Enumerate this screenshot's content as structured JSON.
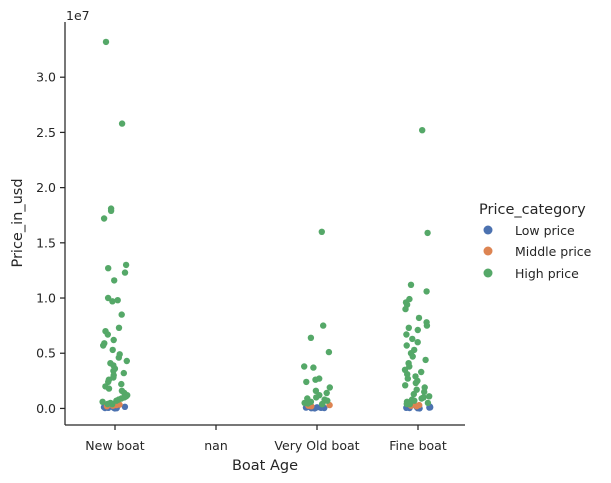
{
  "chart_data": {
    "type": "scatter",
    "subtype": "strip",
    "xlabel": "Boat Age",
    "ylabel": "Price_in_usd",
    "y_offset_label": "1e7",
    "categories": [
      "New boat",
      "nan",
      "Very Old boat",
      "Fine boat"
    ],
    "ylim": [
      -1500000,
      35000000
    ],
    "yticks": [
      0,
      5000000,
      10000000,
      15000000,
      20000000,
      25000000,
      30000000
    ],
    "ytick_labels": [
      "0.0",
      "0.5",
      "1.0",
      "1.5",
      "2.0",
      "2.5",
      "3.0"
    ],
    "grid": false,
    "legend": {
      "title": "Price_category",
      "placement": "right",
      "entries": [
        {
          "name": "Low price",
          "color": "#4c72b0"
        },
        {
          "name": "Middle price",
          "color": "#dd8452"
        },
        {
          "name": "High price",
          "color": "#55a868"
        }
      ]
    },
    "series": [
      {
        "name": "Low price",
        "color": "#4c72b0",
        "points": [
          [
            "New boat",
            0
          ],
          [
            "New boat",
            20000
          ],
          [
            "New boat",
            40000
          ],
          [
            "New boat",
            60000
          ],
          [
            "New boat",
            80000
          ],
          [
            "New boat",
            100000
          ],
          [
            "New boat",
            120000
          ],
          [
            "New boat",
            150000
          ],
          [
            "New boat",
            180000
          ],
          [
            "Very Old boat",
            0
          ],
          [
            "Very Old boat",
            20000
          ],
          [
            "Very Old boat",
            40000
          ],
          [
            "Very Old boat",
            60000
          ],
          [
            "Very Old boat",
            80000
          ],
          [
            "Very Old boat",
            100000
          ],
          [
            "Very Old boat",
            120000
          ],
          [
            "Very Old boat",
            150000
          ],
          [
            "Very Old boat",
            180000
          ],
          [
            "Fine boat",
            0
          ],
          [
            "Fine boat",
            20000
          ],
          [
            "Fine boat",
            40000
          ],
          [
            "Fine boat",
            60000
          ],
          [
            "Fine boat",
            80000
          ],
          [
            "Fine boat",
            100000
          ],
          [
            "Fine boat",
            120000
          ],
          [
            "Fine boat",
            150000
          ],
          [
            "Fine boat",
            180000
          ]
        ]
      },
      {
        "name": "Middle price",
        "color": "#dd8452",
        "points": [
          [
            "New boat",
            200000
          ],
          [
            "New boat",
            250000
          ],
          [
            "New boat",
            300000
          ],
          [
            "New boat",
            350000
          ],
          [
            "Very Old boat",
            200000
          ],
          [
            "Very Old boat",
            250000
          ],
          [
            "Very Old boat",
            300000
          ],
          [
            "Fine boat",
            200000
          ],
          [
            "Fine boat",
            250000
          ],
          [
            "Fine boat",
            300000
          ],
          [
            "Fine boat",
            350000
          ]
        ]
      },
      {
        "name": "High price",
        "color": "#55a868",
        "points": [
          [
            "New boat",
            33200000
          ],
          [
            "New boat",
            25800000
          ],
          [
            "New boat",
            18100000
          ],
          [
            "New boat",
            17900000
          ],
          [
            "New boat",
            17200000
          ],
          [
            "New boat",
            13000000
          ],
          [
            "New boat",
            12700000
          ],
          [
            "New boat",
            12300000
          ],
          [
            "New boat",
            11600000
          ],
          [
            "New boat",
            10000000
          ],
          [
            "New boat",
            9800000
          ],
          [
            "New boat",
            9700000
          ],
          [
            "New boat",
            8500000
          ],
          [
            "New boat",
            7300000
          ],
          [
            "New boat",
            7000000
          ],
          [
            "New boat",
            6700000
          ],
          [
            "New boat",
            6200000
          ],
          [
            "New boat",
            5900000
          ],
          [
            "New boat",
            5700000
          ],
          [
            "New boat",
            5300000
          ],
          [
            "New boat",
            4900000
          ],
          [
            "New boat",
            4600000
          ],
          [
            "New boat",
            4300000
          ],
          [
            "New boat",
            4100000
          ],
          [
            "New boat",
            3900000
          ],
          [
            "New boat",
            3600000
          ],
          [
            "New boat",
            3400000
          ],
          [
            "New boat",
            3200000
          ],
          [
            "New boat",
            3000000
          ],
          [
            "New boat",
            2800000
          ],
          [
            "New boat",
            2600000
          ],
          [
            "New boat",
            2400000
          ],
          [
            "New boat",
            2200000
          ],
          [
            "New boat",
            2000000
          ],
          [
            "New boat",
            1800000
          ],
          [
            "New boat",
            1600000
          ],
          [
            "New boat",
            1400000
          ],
          [
            "New boat",
            1200000
          ],
          [
            "New boat",
            1100000
          ],
          [
            "New boat",
            1000000
          ],
          [
            "New boat",
            900000
          ],
          [
            "New boat",
            800000
          ],
          [
            "New boat",
            700000
          ],
          [
            "New boat",
            600000
          ],
          [
            "New boat",
            500000
          ],
          [
            "New boat",
            450000
          ],
          [
            "New boat",
            400000
          ],
          [
            "New boat",
            380000
          ],
          [
            "Very Old boat",
            16000000
          ],
          [
            "Very Old boat",
            7500000
          ],
          [
            "Very Old boat",
            6400000
          ],
          [
            "Very Old boat",
            5100000
          ],
          [
            "Very Old boat",
            3800000
          ],
          [
            "Very Old boat",
            3700000
          ],
          [
            "Very Old boat",
            2700000
          ],
          [
            "Very Old boat",
            2600000
          ],
          [
            "Very Old boat",
            2400000
          ],
          [
            "Very Old boat",
            1900000
          ],
          [
            "Very Old boat",
            1600000
          ],
          [
            "Very Old boat",
            1400000
          ],
          [
            "Very Old boat",
            1200000
          ],
          [
            "Very Old boat",
            1000000
          ],
          [
            "Very Old boat",
            900000
          ],
          [
            "Very Old boat",
            800000
          ],
          [
            "Very Old boat",
            700000
          ],
          [
            "Very Old boat",
            600000
          ],
          [
            "Very Old boat",
            500000
          ],
          [
            "Very Old boat",
            450000
          ],
          [
            "Very Old boat",
            400000
          ],
          [
            "Very Old boat",
            380000
          ],
          [
            "Fine boat",
            25200000
          ],
          [
            "Fine boat",
            15900000
          ],
          [
            "Fine boat",
            11200000
          ],
          [
            "Fine boat",
            10600000
          ],
          [
            "Fine boat",
            9900000
          ],
          [
            "Fine boat",
            9600000
          ],
          [
            "Fine boat",
            9400000
          ],
          [
            "Fine boat",
            9000000
          ],
          [
            "Fine boat",
            8200000
          ],
          [
            "Fine boat",
            7800000
          ],
          [
            "Fine boat",
            7500000
          ],
          [
            "Fine boat",
            7300000
          ],
          [
            "Fine boat",
            7100000
          ],
          [
            "Fine boat",
            6700000
          ],
          [
            "Fine boat",
            6300000
          ],
          [
            "Fine boat",
            6000000
          ],
          [
            "Fine boat",
            5700000
          ],
          [
            "Fine boat",
            5300000
          ],
          [
            "Fine boat",
            5000000
          ],
          [
            "Fine boat",
            4700000
          ],
          [
            "Fine boat",
            4400000
          ],
          [
            "Fine boat",
            4100000
          ],
          [
            "Fine boat",
            3800000
          ],
          [
            "Fine boat",
            3500000
          ],
          [
            "Fine boat",
            3300000
          ],
          [
            "Fine boat",
            3100000
          ],
          [
            "Fine boat",
            2900000
          ],
          [
            "Fine boat",
            2700000
          ],
          [
            "Fine boat",
            2500000
          ],
          [
            "Fine boat",
            2300000
          ],
          [
            "Fine boat",
            2100000
          ],
          [
            "Fine boat",
            1900000
          ],
          [
            "Fine boat",
            1700000
          ],
          [
            "Fine boat",
            1500000
          ],
          [
            "Fine boat",
            1300000
          ],
          [
            "Fine boat",
            1100000
          ],
          [
            "Fine boat",
            1000000
          ],
          [
            "Fine boat",
            900000
          ],
          [
            "Fine boat",
            800000
          ],
          [
            "Fine boat",
            700000
          ],
          [
            "Fine boat",
            600000
          ],
          [
            "Fine boat",
            500000
          ],
          [
            "Fine boat",
            450000
          ],
          [
            "Fine boat",
            400000
          ],
          [
            "Fine boat",
            380000
          ]
        ]
      }
    ]
  }
}
